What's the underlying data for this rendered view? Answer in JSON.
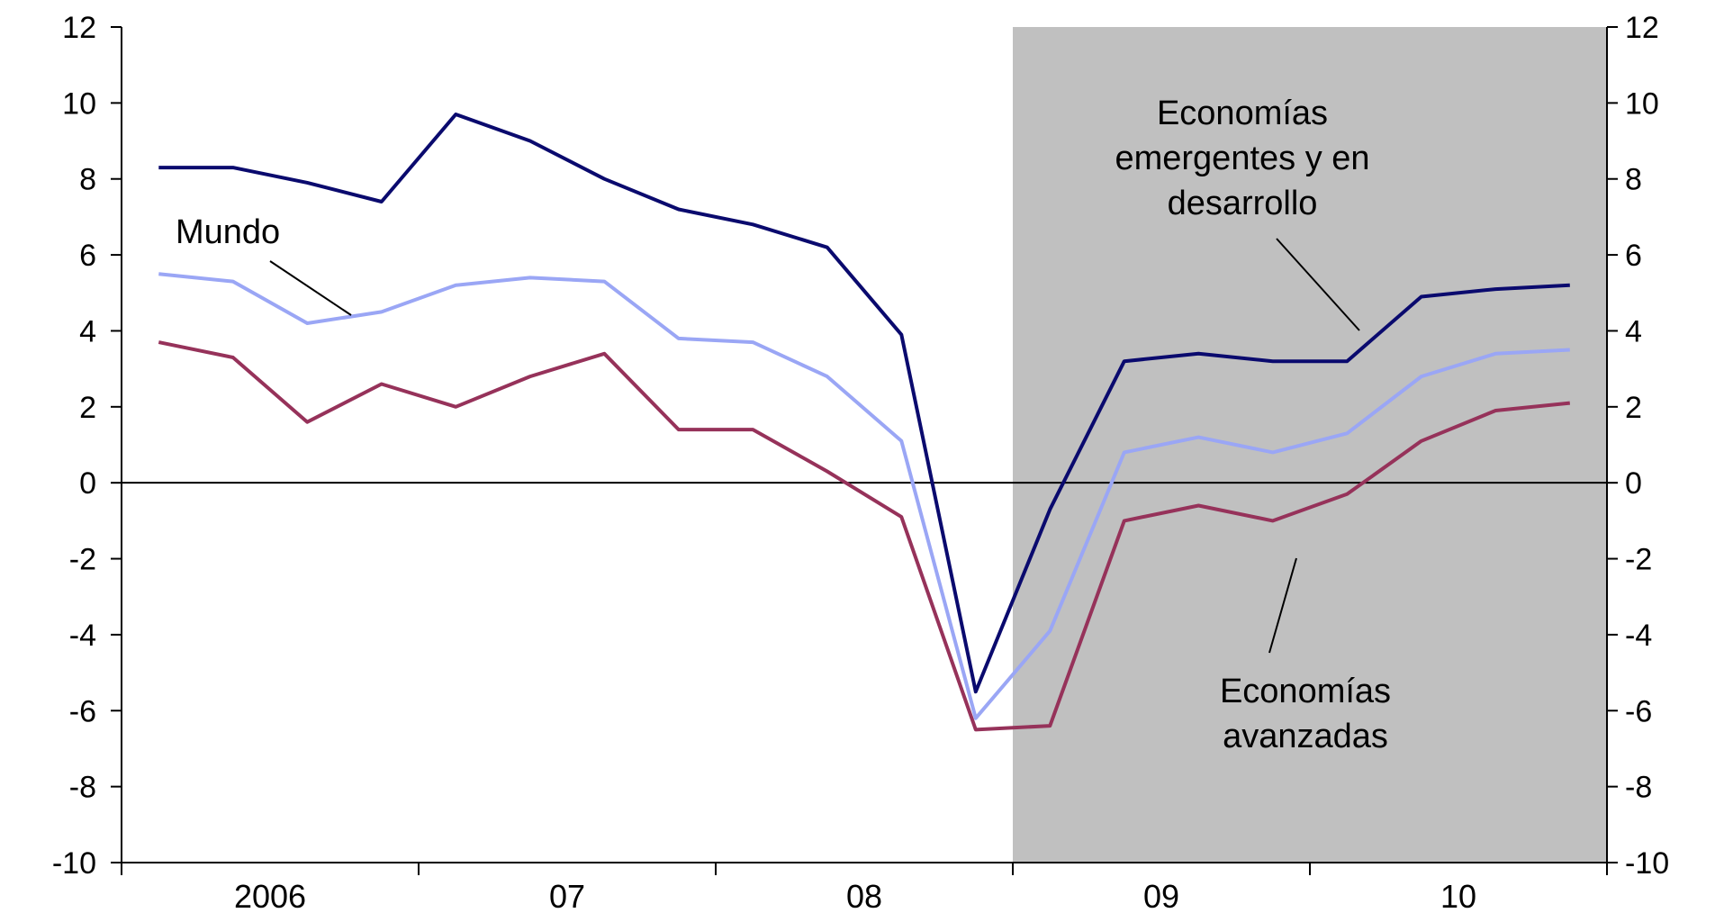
{
  "chart_data": {
    "type": "line",
    "x_categories": [
      "2006",
      "07",
      "08",
      "09",
      "10"
    ],
    "x": [
      "2006Q1",
      "2006Q2",
      "2006Q3",
      "2006Q4",
      "2007Q1",
      "2007Q2",
      "2007Q3",
      "2007Q4",
      "2008Q1",
      "2008Q2",
      "2008Q3",
      "2008Q4",
      "2009Q1",
      "2009Q2",
      "2009Q3",
      "2009Q4",
      "2010Q1",
      "2010Q2",
      "2010Q3",
      "2010Q4"
    ],
    "ylim": [
      -10,
      12
    ],
    "yticks": [
      -10,
      -8,
      -6,
      -4,
      -2,
      0,
      2,
      4,
      6,
      8,
      10,
      12
    ],
    "shaded_region": {
      "from": "2009Q1",
      "to": "2010Q4",
      "color": "#c0c0c0"
    },
    "zero_line": true,
    "series": [
      {
        "name": "Economías emergentes y en desarrollo",
        "color": "#0a0a6e",
        "values": [
          8.3,
          8.3,
          7.9,
          7.4,
          9.7,
          9.0,
          8.0,
          7.2,
          6.8,
          6.2,
          3.9,
          -5.5,
          -0.7,
          3.2,
          3.4,
          3.2,
          3.2,
          4.9,
          5.1,
          5.2
        ]
      },
      {
        "name": "Mundo",
        "color": "#9aa6f5",
        "values": [
          5.5,
          5.3,
          4.2,
          4.5,
          5.2,
          5.4,
          5.3,
          3.8,
          3.7,
          2.8,
          1.1,
          -6.2,
          -3.9,
          0.8,
          1.2,
          0.8,
          1.3,
          2.8,
          3.4,
          3.5
        ]
      },
      {
        "name": "Economías avanzadas",
        "color": "#96325a",
        "values": [
          3.7,
          3.3,
          1.6,
          2.6,
          2.0,
          2.8,
          3.4,
          1.4,
          1.4,
          0.3,
          -0.9,
          -6.5,
          -6.4,
          -1.0,
          -0.6,
          -1.0,
          -0.3,
          1.1,
          1.9,
          2.1
        ]
      }
    ],
    "annotations": {
      "mundo": "Mundo",
      "emergentes": [
        "Economías",
        "emergentes y en",
        "desarrollo"
      ],
      "avanzadas": [
        "Economías",
        "avanzadas"
      ]
    }
  }
}
